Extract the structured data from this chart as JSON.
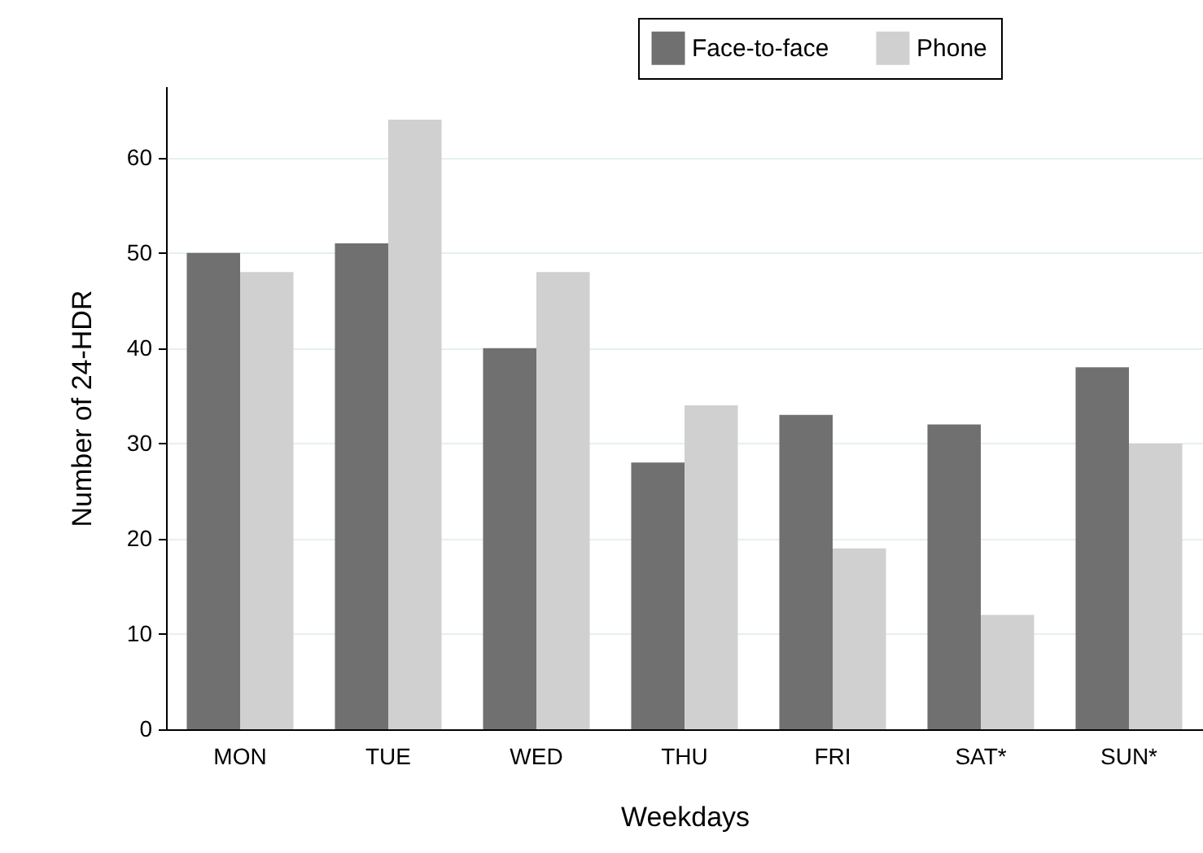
{
  "chart_data": {
    "type": "bar",
    "xlabel": "Weekdays",
    "ylabel": "Number of 24-HDR",
    "categories": [
      "MON",
      "TUE",
      "WED",
      "THU",
      "FRI",
      "SAT*",
      "SUN*"
    ],
    "series": [
      {
        "name": "Face-to-face",
        "color": "#707070",
        "values": [
          50,
          51,
          40,
          28,
          33,
          32,
          38
        ]
      },
      {
        "name": "Phone",
        "color": "#d0d0d0",
        "values": [
          48,
          64,
          48,
          34,
          19,
          12,
          30
        ]
      }
    ],
    "ylim": [
      0,
      67.5
    ],
    "yticks": [
      0,
      10,
      20,
      30,
      40,
      50,
      60
    ],
    "grid": "y",
    "legend": "top right"
  }
}
